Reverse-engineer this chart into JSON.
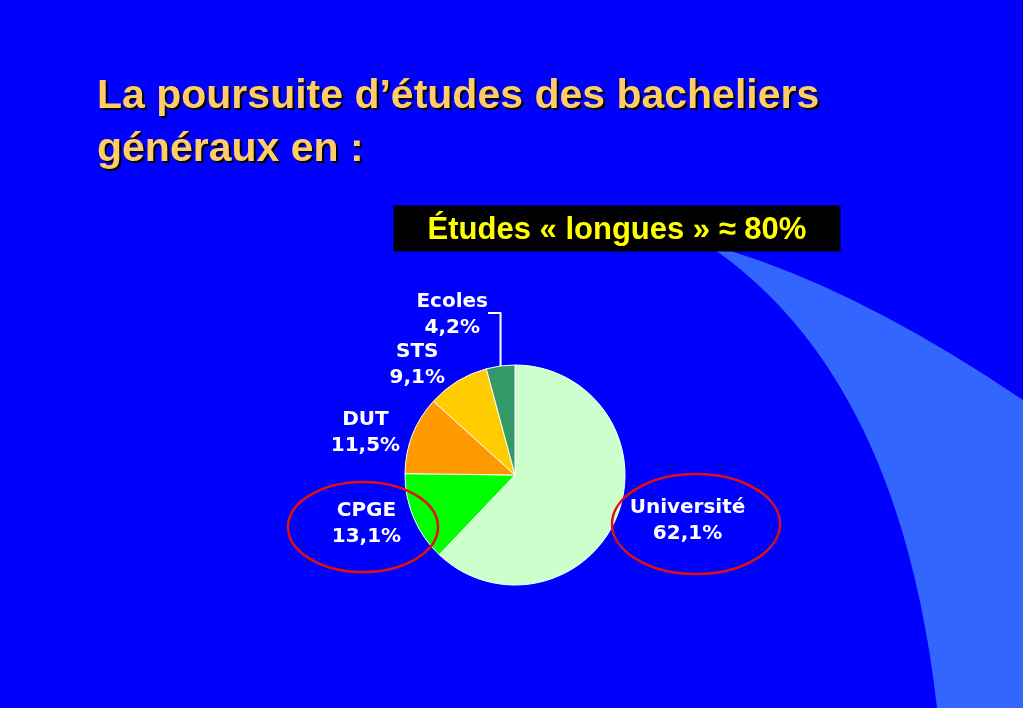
{
  "chart_data": {
    "type": "pie",
    "title": "La poursuite d’études des bacheliers\ngénéraux en :",
    "annotations": [
      "Études « longues » ≈ 80%"
    ],
    "categories": [
      "Université",
      "CPGE",
      "DUT",
      "STS",
      "Ecoles"
    ],
    "values": [
      62.1,
      13.1,
      11.5,
      9.1,
      4.2
    ],
    "colors": [
      "#ccffcc",
      "#00ff00",
      "#ff9900",
      "#ffcc00",
      "#339966"
    ],
    "value_labels": [
      "62,1%",
      "13,1%",
      "11,5%",
      "9,1%",
      "4,2%"
    ],
    "legend": false
  }
}
